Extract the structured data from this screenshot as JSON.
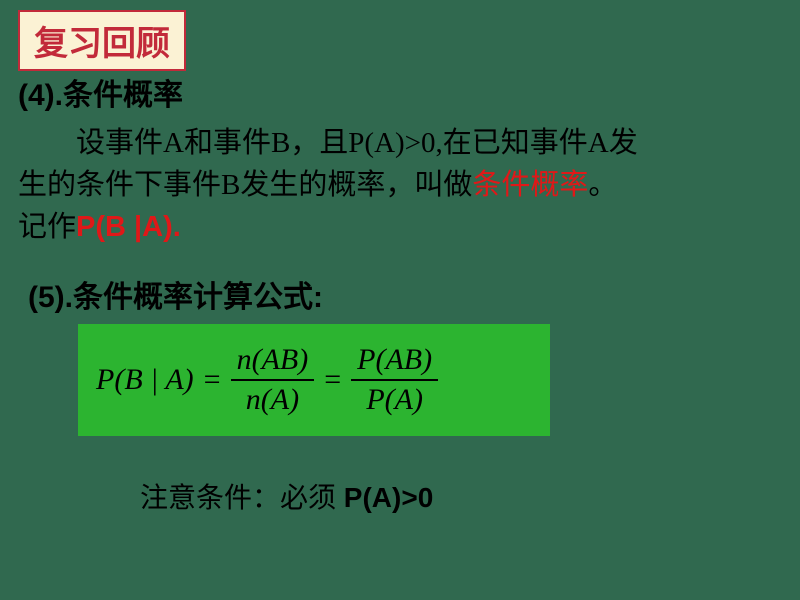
{
  "title": "复习回顾",
  "section4": {
    "heading": "(4).条件概率",
    "line1a": "设事件A和事件B，且P(A)>0,在已知事件A发",
    "line1b": "生的条件下事件B发生的概率，叫做",
    "termRed": "条件概率",
    "termEnd": "。",
    "notationPrefix": "记作",
    "notationRed": "P(B |A).",
    "termColor": "#e01818"
  },
  "section5": {
    "heading": "(5).条件概率计算公式:",
    "formula": {
      "lhs": "P(B | A)",
      "eq1": "=",
      "frac1": {
        "num": "n(AB)",
        "den": "n(A)"
      },
      "eq2": "=",
      "frac2": {
        "num": "P(AB)",
        "den": "P(A)"
      }
    },
    "note": {
      "text": "注意条件：必须",
      "cond": " P(A)>0"
    },
    "box": {
      "bg": "#2cb430",
      "textColor": "#000000"
    }
  },
  "colors": {
    "pageBg": "#30694f",
    "titleBoxBg": "#fbf2d4",
    "titleBoxBorder": "#c22a3a",
    "titleText": "#c22a3a",
    "bodyText": "#000000",
    "redText": "#e01818"
  }
}
